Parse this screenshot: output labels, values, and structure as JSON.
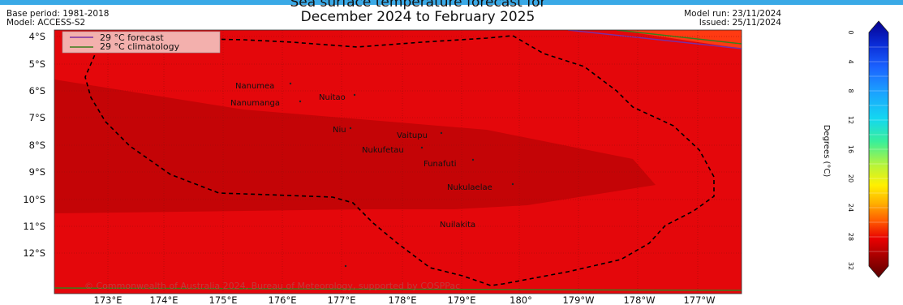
{
  "header": {
    "title_line1": "Sea surface temperature forecast for",
    "title_line2": "December 2024 to February 2025",
    "base_period": "Base period: 1981-2018",
    "model": "Model: ACCESS-S2",
    "model_run": "Model run: 23/11/2024",
    "issued": "Issued: 25/11/2024"
  },
  "legend": {
    "forecast": "29 °C  forecast",
    "climatology": "29 °C  climatology",
    "forecast_color": "#7a2fa3",
    "climatology_color": "#3a7d1c"
  },
  "map": {
    "lat_labels": [
      "4°S",
      "5°S",
      "6°S",
      "7°S",
      "8°S",
      "9°S",
      "10°S",
      "11°S",
      "12°S"
    ],
    "lon_labels": [
      "173°E",
      "174°E",
      "175°E",
      "176°E",
      "177°E",
      "178°E",
      "179°E",
      "180°",
      "179°W",
      "178°W",
      "177°W"
    ],
    "places": [
      {
        "name": "Nanumea"
      },
      {
        "name": "Nuitao"
      },
      {
        "name": "Nanumanga"
      },
      {
        "name": "Niu"
      },
      {
        "name": "Vaitupu"
      },
      {
        "name": "Nukufetau"
      },
      {
        "name": "Funafuti"
      },
      {
        "name": "Nukulaelae"
      },
      {
        "name": "Nuilakita"
      }
    ],
    "copyright": "© Commonwealth of Australia 2024, Bureau of Meteorology, supported by COSPPac",
    "colors": {
      "warm": "#e4070b",
      "warmer": "#c40406",
      "eez_line": "#000000"
    }
  },
  "colorbar": {
    "label": "Degrees (°C)",
    "ticks": [
      "0",
      "4",
      "8",
      "12",
      "16",
      "20",
      "24",
      "28",
      "32"
    ],
    "colors": [
      "#06008f",
      "#0a2bd6",
      "#1b63ff",
      "#1ba3ff",
      "#13d7f0",
      "#39ef9a",
      "#b5f43c",
      "#fff000",
      "#ffb000",
      "#ff5a00",
      "#e80000",
      "#9a0000",
      "#5a0000"
    ]
  }
}
